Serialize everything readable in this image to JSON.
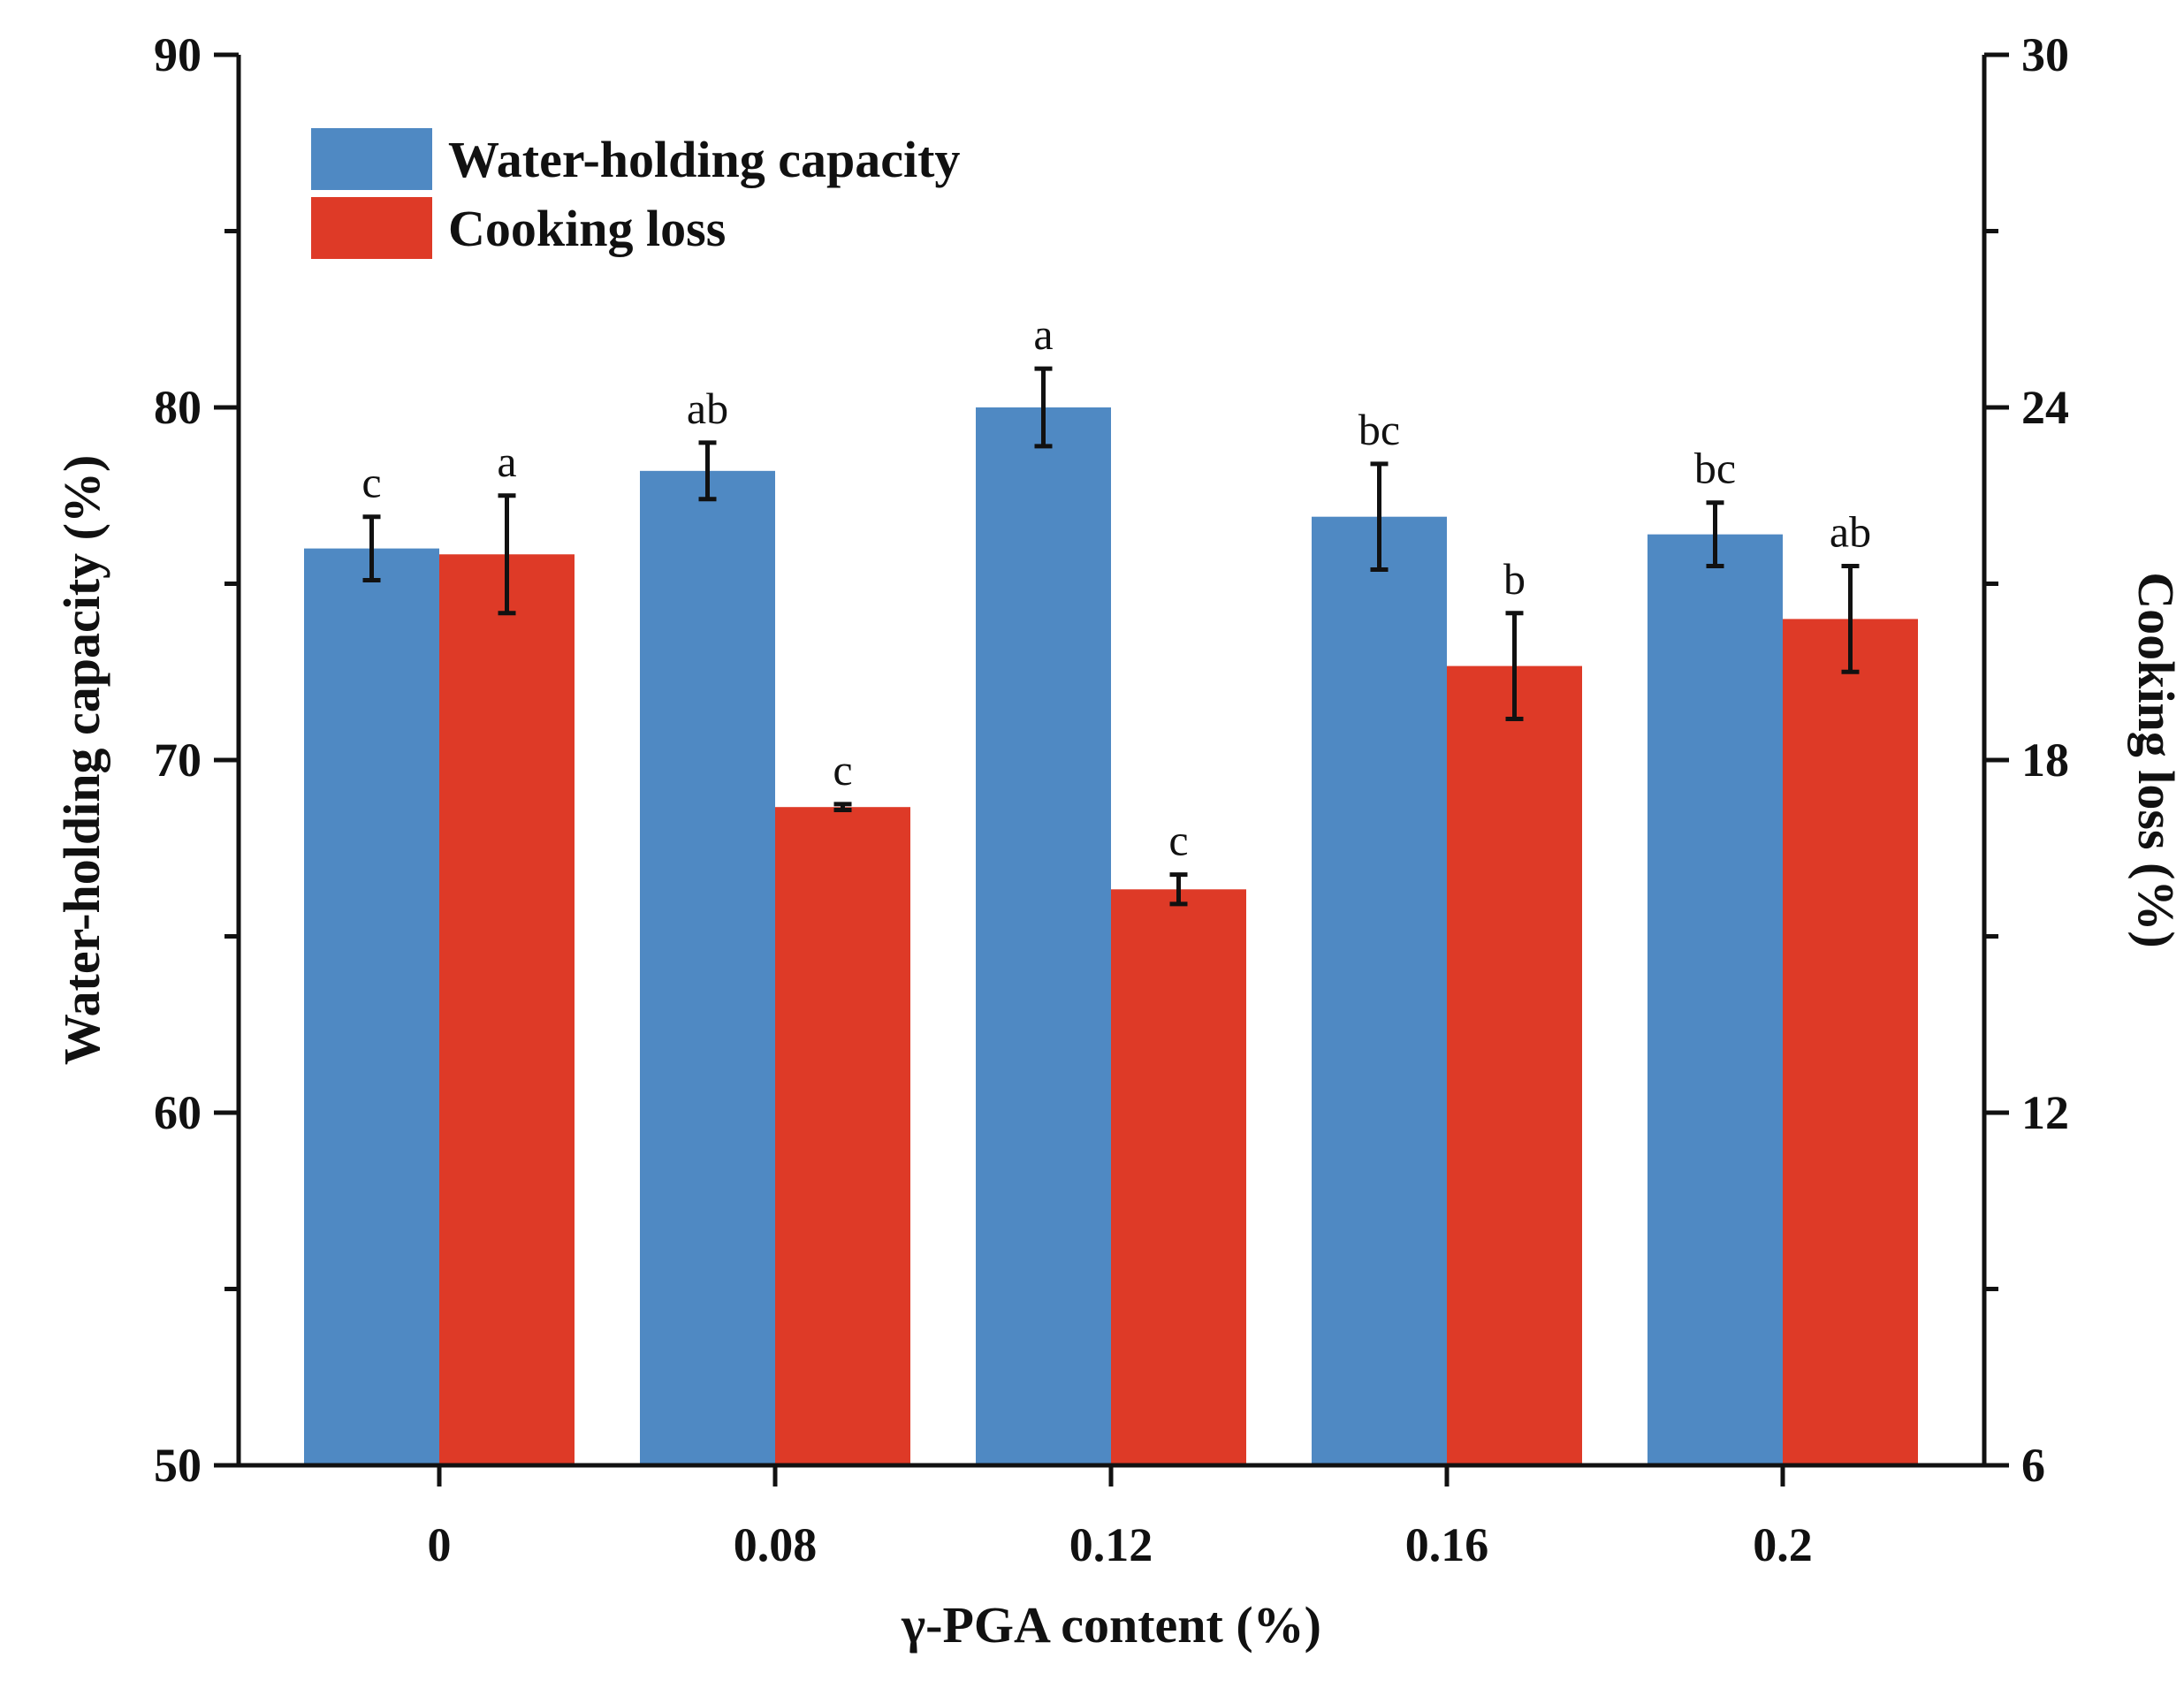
{
  "chart_data": {
    "type": "bar",
    "xlabel": "γ-PGA content (%)",
    "categories": [
      "0",
      "0.08",
      "0.12",
      "0.16",
      "0.2"
    ],
    "y_left": {
      "label": "Water-holding capacity (%)",
      "lim": [
        50,
        90
      ],
      "ticks": [
        "50",
        "60",
        "70",
        "80",
        "90"
      ]
    },
    "y_right": {
      "label": "Cooking loss (%)",
      "lim": [
        6,
        30
      ],
      "ticks": [
        "6",
        "12",
        "18",
        "24",
        "30"
      ]
    },
    "legend_position": "top-left",
    "series": [
      {
        "name": "Water-holding capacity",
        "axis": "left",
        "color": "#4f89c3",
        "values": [
          76.0,
          78.2,
          80.0,
          76.9,
          76.4
        ],
        "errors": [
          0.9,
          0.8,
          1.1,
          1.5,
          0.9
        ],
        "labels": [
          "c",
          "ab",
          "a",
          "bc",
          "bc"
        ]
      },
      {
        "name": "Cooking loss",
        "axis": "right",
        "color": "#de3a27",
        "values": [
          21.5,
          17.2,
          15.8,
          19.6,
          20.4
        ],
        "errors": [
          1.0,
          0.05,
          0.25,
          0.9,
          0.9
        ],
        "labels": [
          "a",
          "c",
          "c",
          "b",
          "ab"
        ]
      }
    ]
  }
}
